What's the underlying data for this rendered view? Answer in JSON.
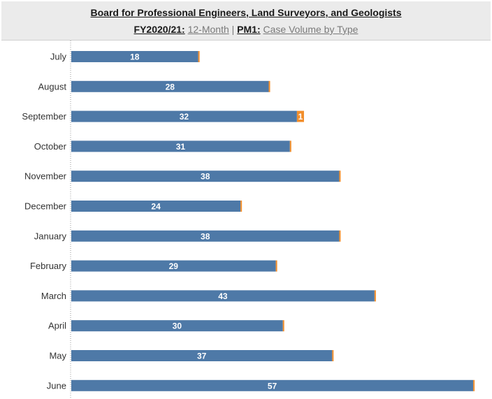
{
  "header": {
    "title": "Board for Professional Engineers, Land Surveyors, and Geologists",
    "fy_label": "FY2020/21:",
    "fy_value": "12-Month",
    "separator": "|",
    "pm_label": "PM1:",
    "pm_value": "Case Volume by Type"
  },
  "colors": {
    "primary_series": "#4e79a7",
    "secondary_series": "#f28e2b",
    "header_bg": "#ebebeb"
  },
  "chart_data": {
    "type": "bar",
    "orientation": "horizontal",
    "stacked": true,
    "categories": [
      "July",
      "August",
      "September",
      "October",
      "November",
      "December",
      "January",
      "February",
      "March",
      "April",
      "May",
      "June"
    ],
    "series": [
      {
        "values": [
          18,
          28,
          32,
          31,
          38,
          24,
          38,
          29,
          43,
          30,
          37,
          57
        ]
      },
      {
        "values": [
          0,
          0,
          1,
          0,
          0,
          0,
          0,
          0,
          0,
          0,
          0,
          0
        ]
      }
    ],
    "data_labels": [
      "18",
      "28",
      "32",
      "31",
      "38",
      "24",
      "38",
      "29",
      "43",
      "30",
      "37",
      "57"
    ],
    "secondary_labels": [
      "",
      "",
      "1",
      "",
      "",
      "",
      "",
      "",
      "",
      "",
      "",
      ""
    ],
    "grid": false
  }
}
